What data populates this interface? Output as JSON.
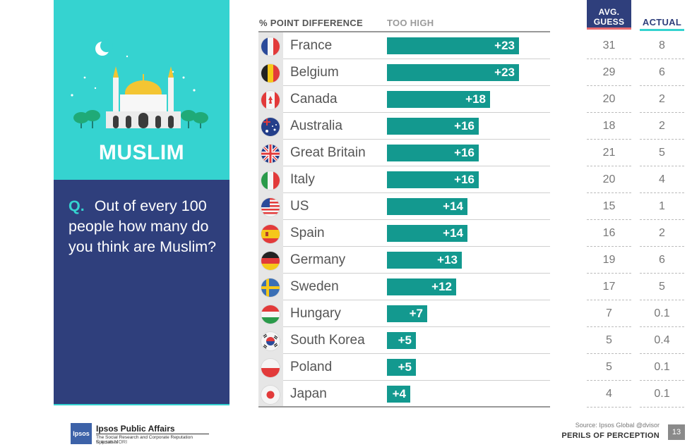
{
  "panel": {
    "topic": "MUSLIM",
    "question_prefix": "Q.",
    "question": "Out of every 100 people how many do you think are Muslim?"
  },
  "headers": {
    "difference": "% POINT DIFFERENCE",
    "too_high": "TOO HIGH",
    "avg_guess": "AVG. GUESS",
    "actual": "ACTUAL"
  },
  "chart_data": {
    "type": "bar",
    "title": "",
    "xlabel": "% POINT DIFFERENCE",
    "ylabel": "",
    "categories": [
      "France",
      "Belgium",
      "Canada",
      "Australia",
      "Great Britain",
      "Italy",
      "US",
      "Spain",
      "Germany",
      "Sweden",
      "Hungary",
      "South Korea",
      "Poland",
      "Japan"
    ],
    "values": [
      23,
      23,
      18,
      16,
      16,
      16,
      14,
      14,
      13,
      12,
      7,
      5,
      5,
      4
    ],
    "value_labels": [
      "+23",
      "+23",
      "+18",
      "+16",
      "+16",
      "+16",
      "+14",
      "+14",
      "+13",
      "+12",
      "+7",
      "+5",
      "+5",
      "+4"
    ],
    "avg_guess": [
      "31",
      "29",
      "20",
      "18",
      "21",
      "20",
      "15",
      "16",
      "19",
      "17",
      "7",
      "5",
      "5",
      "4"
    ],
    "actual": [
      "8",
      "6",
      "2",
      "2",
      "5",
      "4",
      "1",
      "2",
      "6",
      "5",
      "0.1",
      "0.4",
      "0.1",
      "0.1"
    ],
    "xlim": [
      0,
      23
    ],
    "bar_color": "#13998f"
  },
  "colors": {
    "teal": "#35d3d0",
    "navy": "#2f3f7c",
    "bar": "#13998f",
    "coral": "#e8696e"
  },
  "footer": {
    "logo_text": "Ipsos",
    "org_name": "Ipsos Public Affairs",
    "org_tagline": "The Social Research and Corporate Reputation Specialists",
    "org_copy": "© Ipsos MORI",
    "source": "Source: Ipsos Global @dvisor",
    "series_name": "PERILS OF PERCEPTION",
    "page_number": "13"
  }
}
